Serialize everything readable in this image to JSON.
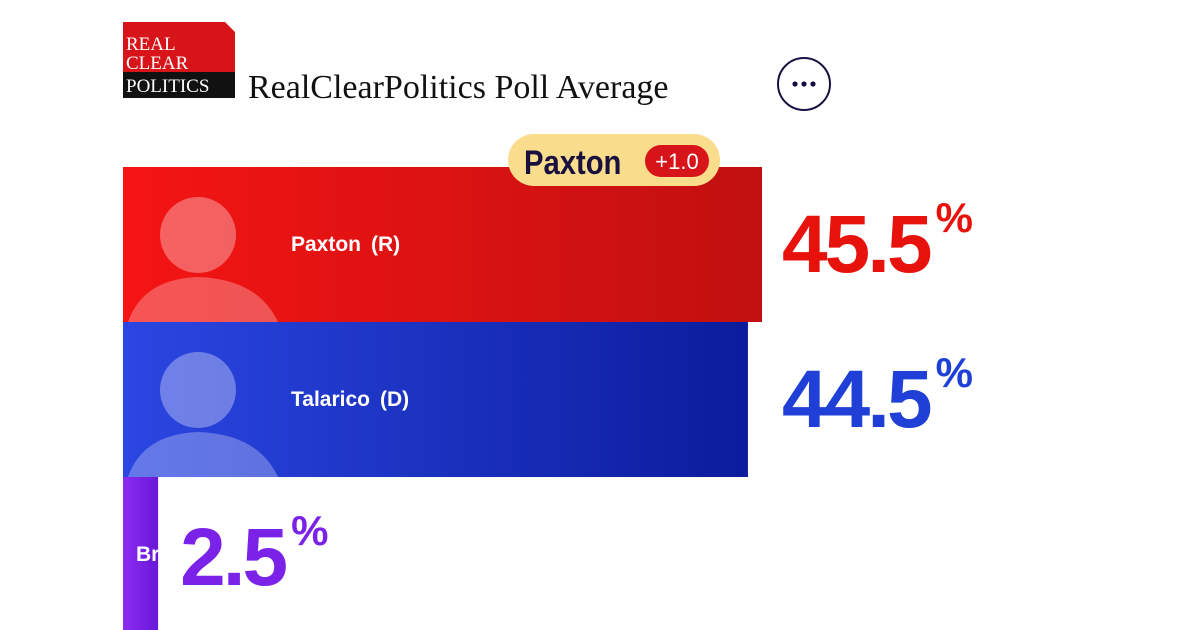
{
  "header": {
    "logo_lines": [
      "REAL",
      "CLEAR",
      "POLITICS"
    ],
    "title": "RealClearPolitics Poll Average"
  },
  "leader": {
    "name": "Paxton",
    "margin": "+1.0"
  },
  "candidates": [
    {
      "name": "Paxton",
      "party": "(R)",
      "value": 45.5,
      "unit": "%",
      "color": "#e8120c"
    },
    {
      "name": "Talarico",
      "party": "(D)",
      "value": 44.5,
      "unit": "%",
      "color": "#1f3fd6"
    },
    {
      "name": "Brown",
      "party": "",
      "value": 2.5,
      "unit": "%",
      "color": "#7b22e8"
    }
  ]
}
